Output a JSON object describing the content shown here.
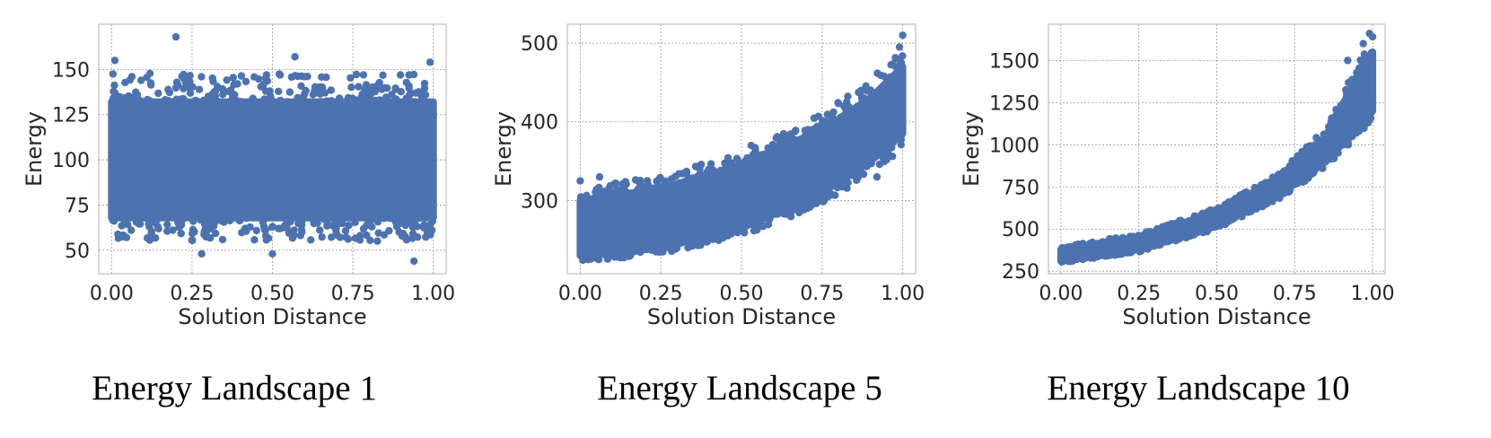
{
  "theme": {
    "marker_color": "#4c72b0",
    "grid_color": "#9a9a9a",
    "frame_color": "#cccccc"
  },
  "captions": [
    "Energy Landscape 1",
    "Energy Landscape 5",
    "Energy Landscape 10"
  ],
  "chart_data": [
    {
      "type": "scatter",
      "title": "",
      "xlabel": "Solution Distance",
      "ylabel": "Energy",
      "xlim": [
        -0.04,
        1.04
      ],
      "ylim": [
        37,
        175
      ],
      "xticks": [
        0.0,
        0.25,
        0.5,
        0.75,
        1.0
      ],
      "xtick_labels": [
        "0.00",
        "0.25",
        "0.50",
        "0.75",
        "1.00"
      ],
      "yticks": [
        50,
        75,
        100,
        125,
        150
      ],
      "ytick_labels": [
        "50",
        "75",
        "100",
        "125",
        "150"
      ],
      "grid": true,
      "series": [
        {
          "color": "#4c72b0",
          "band": {
            "x": [
              0.0,
              1.0
            ],
            "lower": [
              68,
              68
            ],
            "upper": [
              132,
              132
            ],
            "fringe_lower": [
              55,
              55
            ],
            "fringe_upper": [
              148,
              148
            ]
          },
          "outliers": {
            "x": [
              0.01,
              0.2,
              0.28,
              0.5,
              0.57,
              0.94,
              0.99
            ],
            "y": [
              155,
              168,
              48,
              48,
              157,
              44,
              154
            ]
          }
        }
      ]
    },
    {
      "type": "scatter",
      "title": "",
      "xlabel": "Solution Distance",
      "ylabel": "Energy",
      "xlim": [
        -0.04,
        1.04
      ],
      "ylim": [
        207,
        524
      ],
      "xticks": [
        0.0,
        0.25,
        0.5,
        0.75,
        1.0
      ],
      "xtick_labels": [
        "0.00",
        "0.25",
        "0.50",
        "0.75",
        "1.00"
      ],
      "yticks": [
        300,
        400,
        500
      ],
      "ytick_labels": [
        "300",
        "400",
        "500"
      ],
      "grid": true,
      "series": [
        {
          "color": "#4c72b0",
          "band": {
            "x": [
              0.0,
              0.25,
              0.5,
              0.75,
              0.9,
              1.0
            ],
            "lower": [
              230,
              240,
              265,
              310,
              350,
              385
            ],
            "upper": [
              300,
              315,
              345,
              390,
              430,
              470
            ],
            "fringe_lower": [
              222,
              232,
              255,
              295,
              335,
              365
            ],
            "fringe_upper": [
              318,
              330,
              362,
              410,
              455,
              490
            ]
          },
          "outliers": {
            "x": [
              0.0,
              0.06,
              0.53,
              0.92,
              0.99,
              1.0
            ],
            "y": [
              325,
              330,
              370,
              330,
              495,
              510
            ]
          }
        }
      ]
    },
    {
      "type": "scatter",
      "title": "",
      "xlabel": "Solution Distance",
      "ylabel": "Energy",
      "xlim": [
        -0.04,
        1.04
      ],
      "ylim": [
        235,
        1715
      ],
      "xticks": [
        0.0,
        0.25,
        0.5,
        0.75,
        1.0
      ],
      "xtick_labels": [
        "0.00",
        "0.25",
        "0.50",
        "0.75",
        "1.00"
      ],
      "yticks": [
        250,
        500,
        750,
        1000,
        1250,
        1500
      ],
      "ytick_labels": [
        "250",
        "500",
        "750",
        "1000",
        "1250",
        "1500"
      ],
      "grid": true,
      "series": [
        {
          "color": "#4c72b0",
          "band": {
            "x": [
              0.0,
              0.25,
              0.5,
              0.7,
              0.85,
              0.95,
              1.0
            ],
            "lower": [
              310,
              380,
              520,
              700,
              900,
              1100,
              1200
            ],
            "upper": [
              380,
              450,
              600,
              800,
              1050,
              1400,
              1550
            ],
            "fringe_lower": [
              300,
              365,
              500,
              680,
              870,
              1050,
              1150
            ],
            "fringe_upper": [
              395,
              470,
              625,
              830,
              1100,
              1480,
              1620
            ]
          },
          "outliers": {
            "x": [
              0.92,
              0.97,
              0.99,
              1.0
            ],
            "y": [
              1500,
              1600,
              1660,
              1640
            ]
          }
        }
      ]
    }
  ]
}
